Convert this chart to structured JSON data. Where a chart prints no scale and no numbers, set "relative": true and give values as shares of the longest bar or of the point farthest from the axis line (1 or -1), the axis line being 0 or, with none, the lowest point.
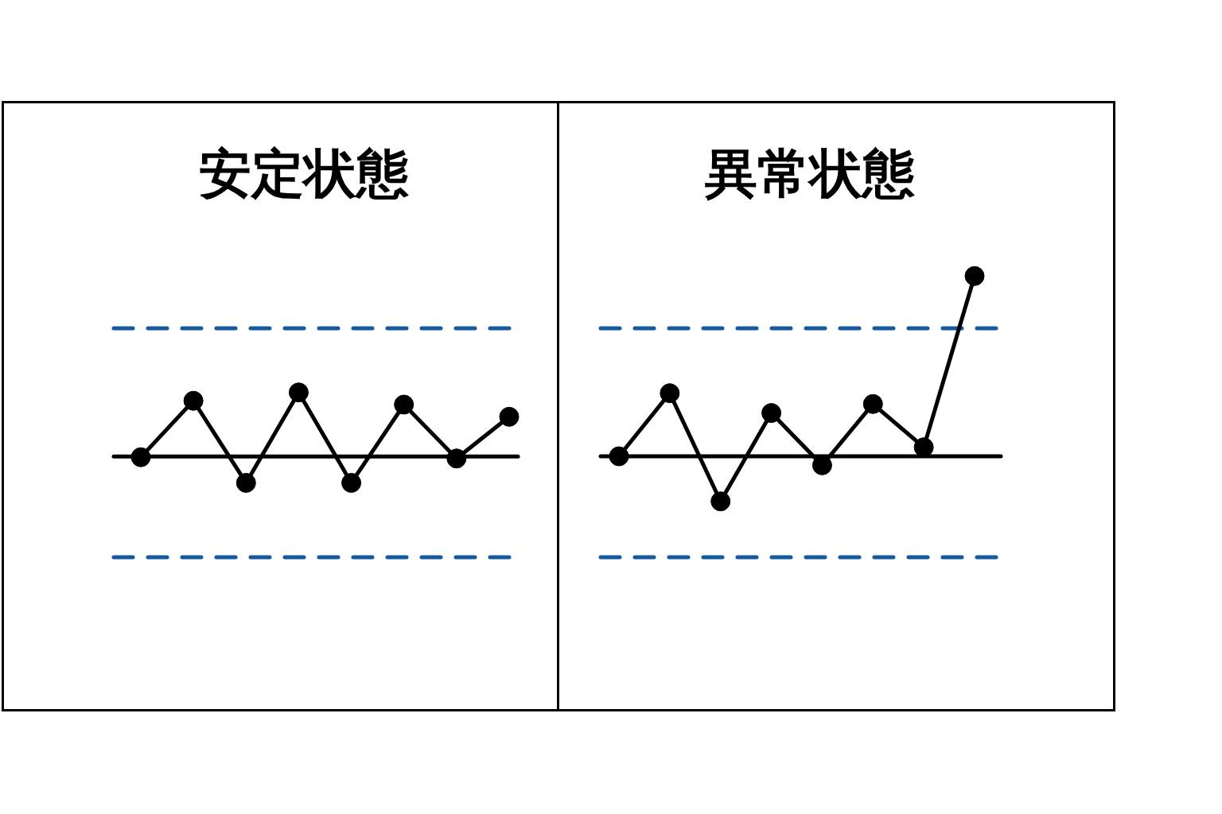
{
  "chart_data": [
    {
      "type": "line",
      "title": "安定状態",
      "categories": [
        null,
        null,
        null,
        null,
        null,
        null,
        null,
        null
      ],
      "relative": true,
      "series": [
        {
          "color": "#000000",
          "values": [
            -0.01,
            0.87,
            -0.41,
            1,
            -0.41,
            0.81,
            -0.03,
            0.62
          ]
        }
      ],
      "ref_lines": [
        {
          "axis": "y",
          "value": 2.0,
          "color": "#155a9c",
          "line_style": "dashed"
        },
        {
          "axis": "y",
          "value": 0,
          "color": "#000000",
          "line_style": "solid"
        },
        {
          "axis": "y",
          "value": -1.57,
          "color": "#155a9c",
          "line_style": "dashed"
        }
      ],
      "marker": "circle",
      "line_style": "solid"
    },
    {
      "type": "line",
      "title": "異常状態",
      "categories": [
        null,
        null,
        null,
        null,
        null,
        null,
        null,
        null
      ],
      "relative": true,
      "series": [
        {
          "color": "#000000",
          "values": [
            0,
            0.35,
            -0.25,
            0.24,
            -0.05,
            0.29,
            0.05,
            1
          ]
        }
      ],
      "ref_lines": [
        {
          "axis": "y",
          "value": 0.71,
          "color": "#155a9c",
          "line_style": "dashed"
        },
        {
          "axis": "y",
          "value": 0,
          "color": "#000000",
          "line_style": "solid"
        },
        {
          "axis": "y",
          "value": -0.56,
          "color": "#155a9c",
          "line_style": "dashed"
        }
      ],
      "marker": "circle",
      "line_style": "solid"
    }
  ]
}
